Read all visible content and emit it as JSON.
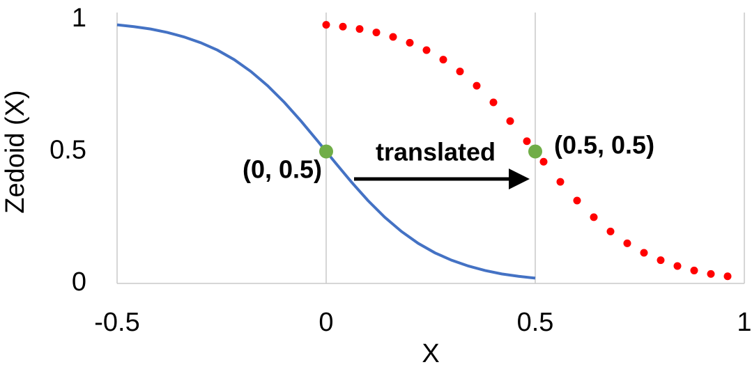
{
  "chart_data": {
    "type": "line",
    "xlabel": "X",
    "ylabel": "Zedoid (X)",
    "xlim": [
      -0.5,
      1
    ],
    "ylim": [
      0,
      1
    ],
    "xticks": [
      -0.5,
      0,
      0.5,
      1
    ],
    "yticks": [
      0,
      0.5,
      1
    ],
    "grid": "x",
    "series": [
      {
        "color": "#4472c4",
        "style": "line",
        "x": [
          -0.5,
          -0.46,
          -0.42,
          -0.38,
          -0.34,
          -0.3,
          -0.26,
          -0.22,
          -0.18,
          -0.14,
          -0.1,
          -0.06,
          -0.02,
          0.02,
          0.06,
          0.1,
          0.14,
          0.18,
          0.22,
          0.26,
          0.3,
          0.34,
          0.38,
          0.42,
          0.46,
          0.5
        ],
        "values": [
          0.98,
          0.973,
          0.964,
          0.951,
          0.934,
          0.912,
          0.884,
          0.848,
          0.803,
          0.749,
          0.686,
          0.615,
          0.539,
          0.461,
          0.385,
          0.314,
          0.251,
          0.197,
          0.152,
          0.116,
          0.088,
          0.066,
          0.049,
          0.036,
          0.027,
          0.02
        ]
      },
      {
        "color": "#ff0000",
        "style": "dotted",
        "x": [
          0,
          0.04,
          0.08,
          0.12,
          0.16,
          0.2,
          0.24,
          0.28,
          0.32,
          0.36,
          0.4,
          0.44,
          0.48,
          0.52,
          0.56,
          0.6,
          0.64,
          0.68,
          0.72,
          0.76,
          0.8,
          0.84,
          0.88,
          0.92,
          0.96
        ],
        "values": [
          0.98,
          0.973,
          0.964,
          0.951,
          0.934,
          0.912,
          0.884,
          0.848,
          0.803,
          0.749,
          0.686,
          0.615,
          0.539,
          0.461,
          0.385,
          0.314,
          0.251,
          0.197,
          0.152,
          0.116,
          0.088,
          0.066,
          0.049,
          0.036,
          0.027
        ]
      },
      {
        "color": "#70ad47",
        "style": "markers",
        "x": [
          0,
          0.5
        ],
        "values": [
          0.5,
          0.5
        ]
      }
    ],
    "annotations": [
      "(0, 0.5)",
      "translated",
      "(0.5, 0.5)"
    ]
  }
}
